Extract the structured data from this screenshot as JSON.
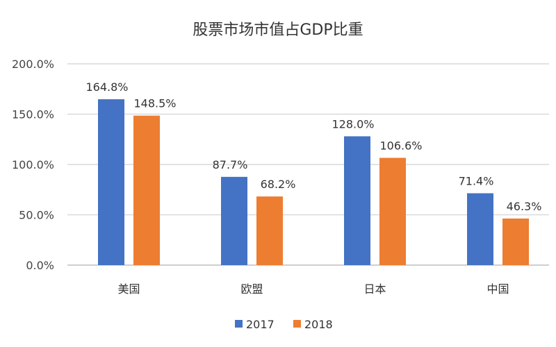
{
  "chart_data": {
    "type": "bar",
    "title": "股票市场市值占GDP比重",
    "xlabel": "",
    "ylabel": "",
    "categories": [
      "美国",
      "欧盟",
      "日本",
      "中国"
    ],
    "series": [
      {
        "name": "2017",
        "color": "#4472C4",
        "values": [
          164.8,
          87.7,
          128.0,
          71.4
        ],
        "labels": [
          "164.8%",
          "87.7%",
          "128.0%",
          "71.4%"
        ]
      },
      {
        "name": "2018",
        "color": "#ED7D31",
        "values": [
          148.5,
          68.2,
          106.6,
          46.3
        ],
        "labels": [
          "148.5%",
          "68.2%",
          "106.6%",
          "46.3%"
        ]
      }
    ],
    "ylim": [
      0,
      200
    ],
    "yticks": [
      0,
      50,
      100,
      150,
      200
    ],
    "ytick_labels": [
      "0.0%",
      "50.0%",
      "100.0%",
      "150.0%",
      "200.0%"
    ],
    "grid": true,
    "legend_position": "bottom"
  }
}
